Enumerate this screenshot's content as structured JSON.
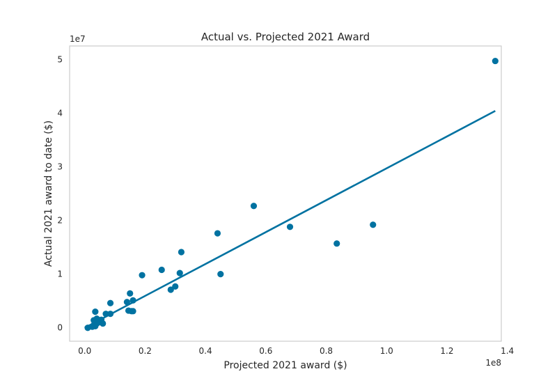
{
  "chart_data": {
    "type": "scatter",
    "title": "Actual vs. Projected 2021 Award",
    "xlabel": "Projected 2021 award ($)",
    "ylabel": "Actual 2021 award to date ($)",
    "x_offset_label": "1e8",
    "y_offset_label": "1e7",
    "xlim": [
      -0.05,
      1.38
    ],
    "ylim": [
      -0.25,
      5.25
    ],
    "xticks": [
      0.0,
      0.2,
      0.4,
      0.6,
      0.8,
      1.0,
      1.2,
      1.4
    ],
    "xtick_labels": [
      "0.0",
      "0.2",
      "0.4",
      "0.6",
      "0.8",
      "1.0",
      "1.2",
      "1.4"
    ],
    "yticks": [
      0,
      1,
      2,
      3,
      4,
      5
    ],
    "ytick_labels": [
      "0",
      "1",
      "2",
      "3",
      "4",
      "5"
    ],
    "grid": false,
    "colors": {
      "point": "#0072a1",
      "line": "#0072a1",
      "frame": "#cccccc",
      "text": "#262626"
    },
    "trend_line": {
      "x": [
        0.0,
        1.36
      ],
      "y": [
        0.0,
        4.04
      ]
    },
    "points": {
      "x": [
        0.01,
        0.025,
        0.03,
        0.035,
        0.04,
        0.045,
        0.05,
        0.055,
        0.03,
        0.035,
        0.04,
        0.06,
        0.07,
        0.085,
        0.085,
        0.14,
        0.145,
        0.15,
        0.16,
        0.155,
        0.16,
        0.19,
        0.255,
        0.285,
        0.3,
        0.315,
        0.32,
        0.44,
        0.45,
        0.56,
        0.68,
        0.835,
        0.955,
        1.36
      ],
      "y": [
        0.0,
        0.02,
        0.05,
        0.03,
        0.08,
        0.1,
        0.12,
        0.15,
        0.14,
        0.3,
        0.17,
        0.08,
        0.26,
        0.26,
        0.46,
        0.48,
        0.32,
        0.64,
        0.51,
        0.31,
        0.31,
        0.98,
        1.08,
        0.71,
        0.77,
        1.02,
        1.41,
        1.76,
        1.0,
        2.27,
        1.88,
        1.57,
        1.92,
        4.97
      ]
    }
  }
}
